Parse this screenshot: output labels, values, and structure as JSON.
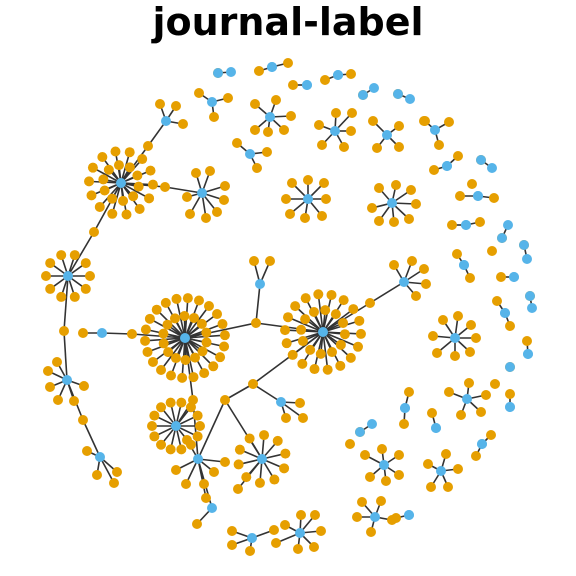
{
  "title": "journal-label",
  "colors": {
    "hub": "#56b4e9",
    "leaf": "#e69f00",
    "edge": "#333333"
  },
  "graph": {
    "description_free": true,
    "nodes": [],
    "edges": []
  }
}
